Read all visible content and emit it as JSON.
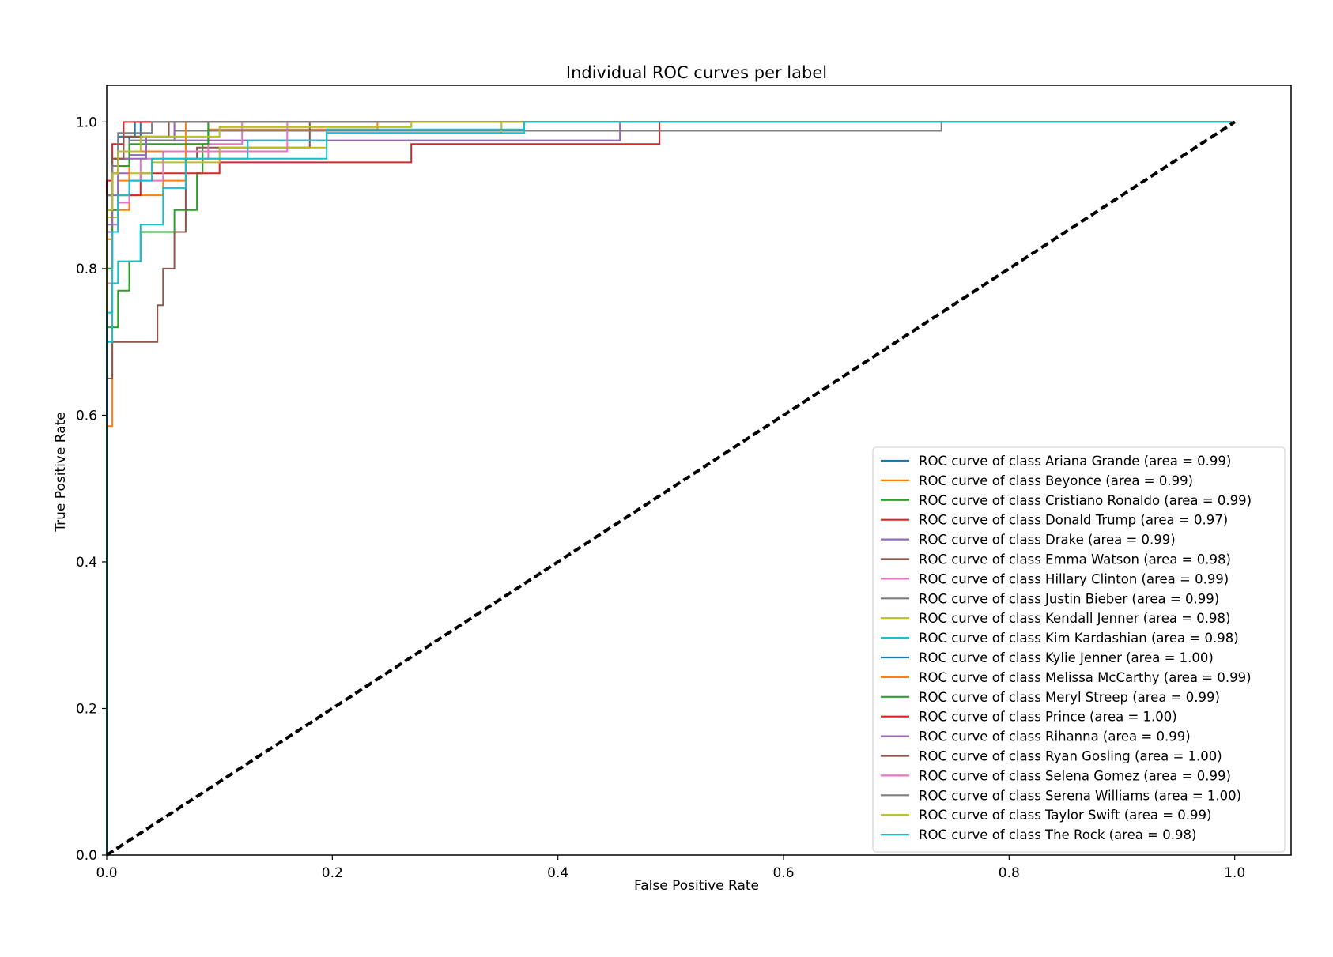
{
  "chart_data": {
    "type": "line",
    "title": "Individual ROC curves per label",
    "xlabel": "False Positive Rate",
    "ylabel": "True Positive Rate",
    "xlim": [
      0.0,
      1.05
    ],
    "ylim": [
      0.0,
      1.05
    ],
    "xticks": [
      0.0,
      0.2,
      0.4,
      0.6,
      0.8,
      1.0
    ],
    "xtick_labels": [
      "0.0",
      "0.2",
      "0.4",
      "0.6",
      "0.8",
      "1.0"
    ],
    "yticks": [
      0.0,
      0.2,
      0.4,
      0.6,
      0.8,
      1.0
    ],
    "ytick_labels": [
      "0.0",
      "0.2",
      "0.4",
      "0.6",
      "0.8",
      "1.0"
    ],
    "grid": false,
    "legend_position": "lower-right",
    "diagonal": {
      "style": "dashed",
      "color": "#000000",
      "x": [
        0,
        1
      ],
      "y": [
        0,
        1
      ]
    },
    "series": [
      {
        "name": "ROC curve of class Ariana Grande (area = 0.99)",
        "color": "#1f77b4",
        "x": [
          0,
          0,
          0.005,
          0.005,
          0.01,
          0.01,
          0.02,
          0.02,
          0.03,
          0.03,
          1.0
        ],
        "y": [
          0,
          0.88,
          0.88,
          0.93,
          0.93,
          0.96,
          0.96,
          0.98,
          0.98,
          1.0,
          1.0
        ]
      },
      {
        "name": "ROC curve of class Beyonce (area = 0.99)",
        "color": "#ff7f0e",
        "x": [
          0,
          0,
          0.005,
          0.005,
          0.01,
          0.01,
          0.02,
          0.02,
          0.05,
          0.05,
          0.07,
          0.07,
          0.09,
          0.09,
          0.24,
          0.24,
          1.0
        ],
        "y": [
          0,
          0.585,
          0.585,
          0.86,
          0.86,
          0.88,
          0.88,
          0.9,
          0.9,
          0.92,
          0.92,
          0.97,
          0.97,
          0.99,
          0.99,
          1.0,
          1.0
        ]
      },
      {
        "name": "ROC curve of class Cristiano Ronaldo (area = 0.99)",
        "color": "#2ca02c",
        "x": [
          0,
          0,
          0.01,
          0.01,
          0.02,
          0.02,
          0.03,
          0.03,
          0.06,
          0.06,
          0.08,
          0.08,
          0.085,
          0.085,
          0.09,
          0.09,
          1.0
        ],
        "y": [
          0,
          0.72,
          0.72,
          0.77,
          0.77,
          0.81,
          0.81,
          0.85,
          0.85,
          0.88,
          0.88,
          0.93,
          0.93,
          0.97,
          0.97,
          1.0,
          1.0
        ]
      },
      {
        "name": "ROC curve of class Donald Trump (area = 0.97)",
        "color": "#d62728",
        "x": [
          0,
          0,
          0.005,
          0.005,
          0.01,
          0.01,
          0.03,
          0.03,
          0.1,
          0.1,
          0.27,
          0.27,
          0.49,
          0.49,
          1.0
        ],
        "y": [
          0,
          0.8,
          0.8,
          0.85,
          0.85,
          0.9,
          0.9,
          0.93,
          0.93,
          0.945,
          0.945,
          0.97,
          0.97,
          1.0,
          1.0
        ]
      },
      {
        "name": "ROC curve of class Drake (area = 0.99)",
        "color": "#9467bd",
        "x": [
          0,
          0,
          0.005,
          0.005,
          0.02,
          0.02,
          0.035,
          0.035,
          0.455,
          0.455,
          1.0
        ],
        "y": [
          0,
          0.85,
          0.85,
          0.93,
          0.93,
          0.955,
          0.955,
          0.975,
          0.975,
          1.0,
          1.0
        ]
      },
      {
        "name": "ROC curve of class Emma Watson (area = 0.98)",
        "color": "#8c564b",
        "x": [
          0,
          0,
          0.005,
          0.005,
          0.045,
          0.045,
          0.05,
          0.05,
          0.06,
          0.06,
          0.07,
          0.07,
          0.08,
          0.08,
          0.18,
          0.18,
          1.0
        ],
        "y": [
          0,
          0.65,
          0.65,
          0.7,
          0.7,
          0.75,
          0.75,
          0.8,
          0.8,
          0.85,
          0.85,
          0.95,
          0.95,
          0.965,
          0.965,
          1.0,
          1.0
        ]
      },
      {
        "name": "ROC curve of class Hillary Clinton (area = 0.99)",
        "color": "#e377c2",
        "x": [
          0,
          0,
          0.005,
          0.005,
          0.01,
          0.01,
          0.02,
          0.02,
          0.03,
          0.03,
          0.09,
          0.09,
          0.12,
          0.12,
          1.0
        ],
        "y": [
          0,
          0.8,
          0.8,
          0.86,
          0.86,
          0.89,
          0.89,
          0.92,
          0.92,
          0.95,
          0.95,
          0.97,
          0.97,
          1.0,
          1.0
        ]
      },
      {
        "name": "ROC curve of class Justin Bieber (area = 0.99)",
        "color": "#7f7f7f",
        "x": [
          0,
          0,
          0.005,
          0.005,
          0.02,
          0.02,
          0.06,
          0.06,
          0.74,
          0.74,
          1.0
        ],
        "y": [
          0,
          0.88,
          0.88,
          0.95,
          0.95,
          0.975,
          0.975,
          0.988,
          0.988,
          1.0,
          1.0
        ]
      },
      {
        "name": "ROC curve of class Kendall Jenner (area = 0.98)",
        "color": "#bcbd22",
        "x": [
          0,
          0,
          0.01,
          0.01,
          0.02,
          0.02,
          0.04,
          0.04,
          0.1,
          0.1,
          0.195,
          0.195,
          0.35,
          0.35,
          1.0
        ],
        "y": [
          0,
          0.87,
          0.87,
          0.9,
          0.9,
          0.93,
          0.93,
          0.945,
          0.945,
          0.965,
          0.965,
          0.985,
          0.985,
          1.0,
          1.0
        ]
      },
      {
        "name": "ROC curve of class Kim Kardashian (area = 0.98)",
        "color": "#17becf",
        "x": [
          0,
          0,
          0.005,
          0.005,
          0.01,
          0.01,
          0.03,
          0.03,
          0.05,
          0.05,
          0.07,
          0.07,
          0.125,
          0.125,
          0.195,
          0.195,
          0.37,
          0.37,
          1.0
        ],
        "y": [
          0,
          0.7,
          0.7,
          0.78,
          0.78,
          0.81,
          0.81,
          0.86,
          0.86,
          0.91,
          0.91,
          0.95,
          0.95,
          0.975,
          0.975,
          0.985,
          0.985,
          1.0,
          1.0
        ]
      },
      {
        "name": "ROC curve of class Kylie Jenner (area = 1.00)",
        "color": "#1f77b4",
        "x": [
          0,
          0,
          0.005,
          0.005,
          0.01,
          0.01,
          0.025,
          0.025,
          1.0
        ],
        "y": [
          0,
          0.9,
          0.9,
          0.95,
          0.95,
          0.98,
          0.98,
          1.0,
          1.0
        ]
      },
      {
        "name": "ROC curve of class Melissa McCarthy (area = 0.99)",
        "color": "#ff7f0e",
        "x": [
          0,
          0,
          0.005,
          0.005,
          0.01,
          0.01,
          0.02,
          0.02,
          0.07,
          0.07,
          1.0
        ],
        "y": [
          0,
          0.84,
          0.84,
          0.88,
          0.88,
          0.92,
          0.92,
          0.96,
          0.96,
          1.0,
          1.0
        ]
      },
      {
        "name": "ROC curve of class Meryl Streep (area = 0.99)",
        "color": "#2ca02c",
        "x": [
          0,
          0,
          0.005,
          0.005,
          0.01,
          0.01,
          0.02,
          0.02,
          0.09,
          0.09,
          1.0
        ],
        "y": [
          0,
          0.8,
          0.8,
          0.88,
          0.88,
          0.94,
          0.94,
          0.97,
          0.97,
          1.0,
          1.0
        ]
      },
      {
        "name": "ROC curve of class Prince (area = 1.00)",
        "color": "#d62728",
        "x": [
          0,
          0,
          0.005,
          0.005,
          0.015,
          0.015,
          1.0
        ],
        "y": [
          0,
          0.92,
          0.92,
          0.97,
          0.97,
          1.0,
          1.0
        ]
      },
      {
        "name": "ROC curve of class Rihanna (area = 0.99)",
        "color": "#9467bd",
        "x": [
          0,
          0,
          0.005,
          0.005,
          0.01,
          0.01,
          0.035,
          0.035,
          0.06,
          0.06,
          1.0
        ],
        "y": [
          0,
          0.86,
          0.86,
          0.9,
          0.9,
          0.95,
          0.95,
          0.98,
          0.98,
          1.0,
          1.0
        ]
      },
      {
        "name": "ROC curve of class Ryan Gosling (area = 1.00)",
        "color": "#8c564b",
        "x": [
          0,
          0,
          0.005,
          0.005,
          0.015,
          0.015,
          0.055,
          0.055,
          1.0
        ],
        "y": [
          0,
          0.9,
          0.9,
          0.95,
          0.95,
          0.98,
          0.98,
          1.0,
          1.0
        ]
      },
      {
        "name": "ROC curve of class Selena Gomez (area = 0.99)",
        "color": "#e377c2",
        "x": [
          0,
          0,
          0.005,
          0.005,
          0.01,
          0.01,
          0.02,
          0.02,
          0.05,
          0.05,
          0.16,
          0.16,
          1.0
        ],
        "y": [
          0,
          0.78,
          0.78,
          0.85,
          0.85,
          0.89,
          0.89,
          0.92,
          0.92,
          0.96,
          0.96,
          1.0,
          1.0
        ]
      },
      {
        "name": "ROC curve of class Serena Williams (area = 1.00)",
        "color": "#7f7f7f",
        "x": [
          0,
          0,
          0.005,
          0.005,
          0.01,
          0.01,
          0.04,
          0.04,
          1.0
        ],
        "y": [
          0,
          0.9,
          0.9,
          0.94,
          0.94,
          0.985,
          0.985,
          1.0,
          1.0
        ]
      },
      {
        "name": "ROC curve of class Taylor Swift (area = 0.99)",
        "color": "#bcbd22",
        "x": [
          0,
          0,
          0.005,
          0.005,
          0.01,
          0.01,
          0.03,
          0.03,
          0.1,
          0.1,
          0.27,
          0.27,
          1.0
        ],
        "y": [
          0,
          0.88,
          0.88,
          0.93,
          0.93,
          0.96,
          0.96,
          0.98,
          0.98,
          0.993,
          0.993,
          1.0,
          1.0
        ]
      },
      {
        "name": "ROC curve of class The Rock (area = 0.98)",
        "color": "#17becf",
        "x": [
          0,
          0,
          0.005,
          0.005,
          0.01,
          0.01,
          0.02,
          0.02,
          0.04,
          0.04,
          0.195,
          0.195,
          0.37,
          0.37,
          1.0
        ],
        "y": [
          0,
          0.74,
          0.74,
          0.85,
          0.85,
          0.9,
          0.9,
          0.92,
          0.92,
          0.95,
          0.95,
          0.99,
          0.99,
          1.0,
          1.0
        ]
      }
    ]
  }
}
